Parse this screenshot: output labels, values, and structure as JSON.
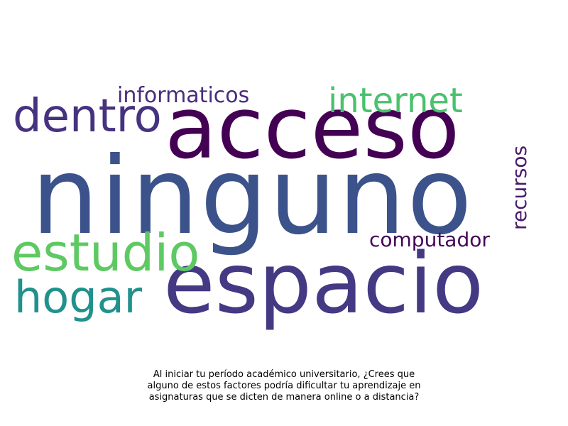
{
  "wordcloud": {
    "words": [
      {
        "text": "ninguno",
        "color": "#3b528b"
      },
      {
        "text": "acceso",
        "color": "#440154"
      },
      {
        "text": "espacio",
        "color": "#443983"
      },
      {
        "text": "estudio",
        "color": "#5ec962"
      },
      {
        "text": "dentro",
        "color": "#46327e"
      },
      {
        "text": "internet",
        "color": "#4ac16d"
      },
      {
        "text": "hogar",
        "color": "#21918c"
      },
      {
        "text": "informaticos",
        "color": "#472d7b"
      },
      {
        "text": "computador",
        "color": "#450559"
      },
      {
        "text": "recursos",
        "color": "#481b6d"
      }
    ]
  },
  "caption": {
    "line1": "Al iniciar tu período académico universitario, ¿Crees que",
    "line2": "alguno de estos factores podría dificultar tu aprendizaje en",
    "line3": "asignaturas que se dicten de manera online o a distancia?"
  }
}
